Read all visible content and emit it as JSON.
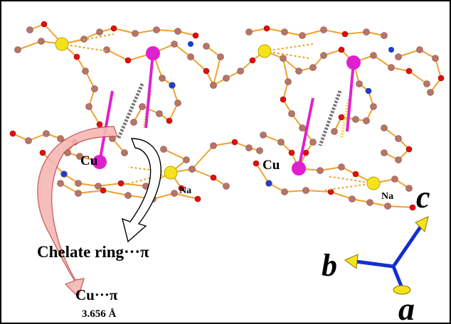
{
  "atom_labels": [
    "Cu",
    "Na",
    "Cu",
    "Na"
  ],
  "annotations": {
    "chelate": "Chelate ring···π",
    "cu_pi": "Cu···π",
    "distance": "3.656 Å"
  },
  "axis_labels": [
    "b",
    "c",
    "a"
  ]
}
